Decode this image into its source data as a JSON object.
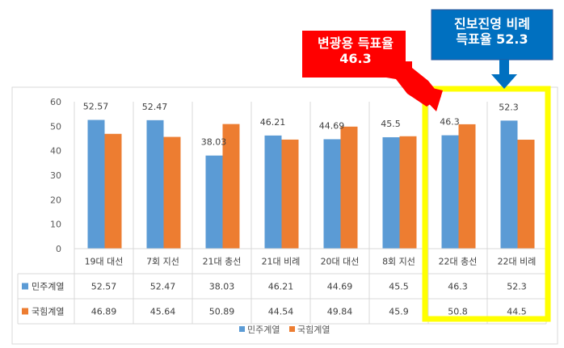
{
  "chart_data": {
    "type": "bar",
    "categories": [
      "19대 대선",
      "7회 지선",
      "21대 총선",
      "21대 비례",
      "20대 대선",
      "8회 지선",
      "22대 총선",
      "22대 비례"
    ],
    "series": [
      {
        "name": "민주계열",
        "color": "#5b9bd5",
        "values": [
          52.57,
          52.47,
          38.03,
          46.21,
          44.69,
          45.5,
          46.3,
          52.3
        ],
        "table_values": [
          "52.57",
          "52.47",
          "38.03",
          "46.21",
          "44.69",
          "45.5",
          "46.3",
          "52.3"
        ]
      },
      {
        "name": "국힘계열",
        "color": "#ed7d31",
        "values": [
          46.89,
          45.64,
          50.89,
          44.54,
          49.84,
          45.9,
          50.8,
          44.5
        ],
        "table_values": [
          "46.89",
          "45.64",
          "50.89",
          "44.54",
          "49.84",
          "45.9",
          "50.8",
          "44.5"
        ]
      }
    ],
    "data_labels": [
      "52.57",
      "52.47",
      "38.03",
      "46.21",
      "44.69",
      "45.5",
      "46.3",
      "52.3"
    ],
    "yticks": [
      "0",
      "10",
      "20",
      "30",
      "40",
      "50",
      "60"
    ],
    "ylim": [
      0,
      60
    ],
    "grid": false,
    "legend_position": "bottom",
    "data_table": true
  },
  "callouts": {
    "red": {
      "line1": "변광용 득표율",
      "line2": "46.3",
      "color": "#ff0000"
    },
    "blue": {
      "line1": "진보진영 비례",
      "line2": "득표율  52.3",
      "color": "#0070c0"
    },
    "highlight_color": "#ffff00"
  }
}
